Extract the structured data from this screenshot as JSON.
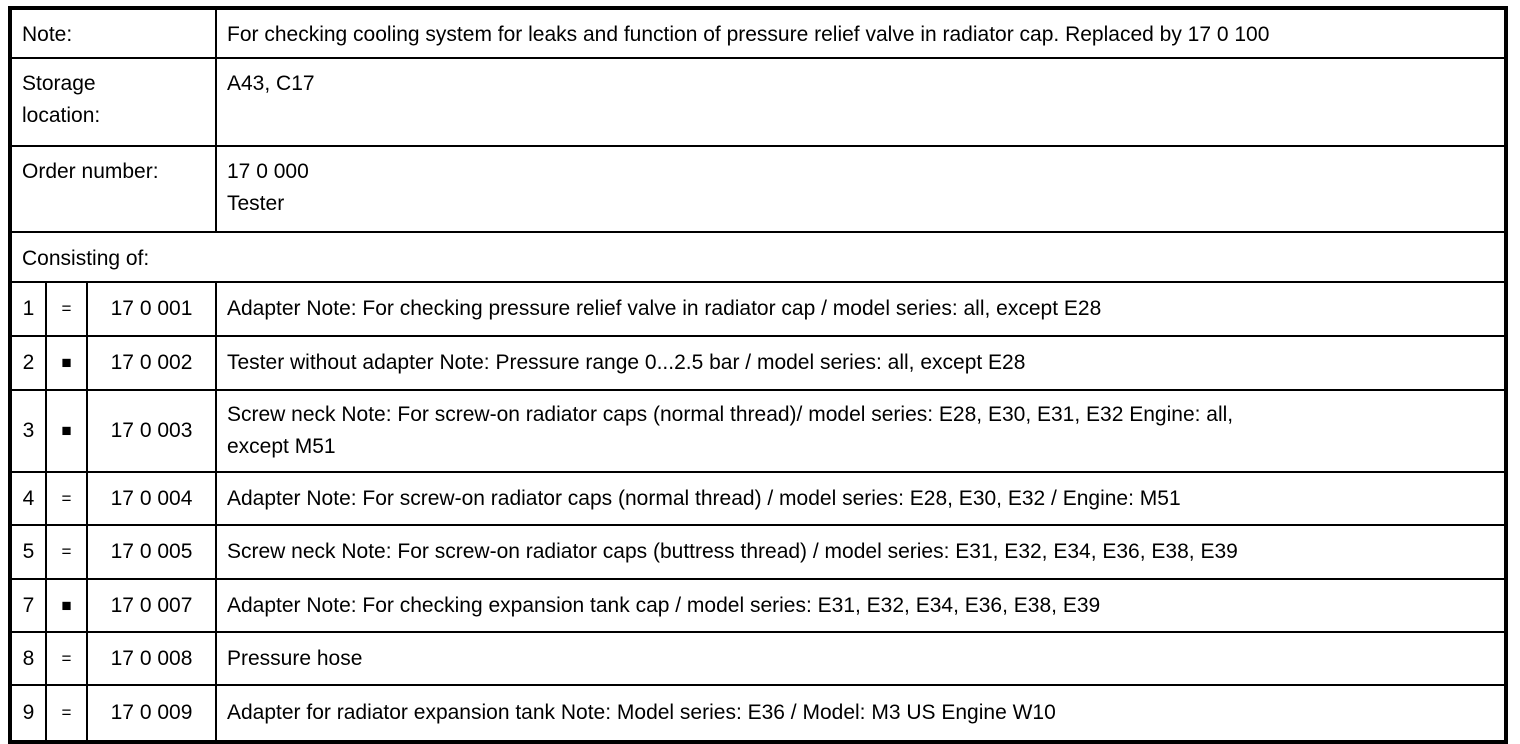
{
  "table": {
    "header_rows": [
      {
        "label": "Note:",
        "value": "For checking cooling system for leaks and function of pressure relief valve in radiator cap. Replaced by 17 0 100"
      },
      {
        "label": "Storage\nlocation:",
        "value": "A43, C17"
      },
      {
        "label": "Order number:",
        "value": "17 0 000\nTester"
      }
    ],
    "section_label": "Consisting of:",
    "items": [
      {
        "no": "1",
        "eq": "=",
        "order_number": "17 0 001",
        "description": "Adapter Note: For checking pressure relief valve in radiator cap / model series: all, except E28"
      },
      {
        "no": "2",
        "eq": "■",
        "order_number": "17 0 002",
        "description": "Tester without adapter Note: Pressure range 0...2.5 bar / model series: all, except E28"
      },
      {
        "no": "3",
        "eq": "■",
        "order_number": "17 0 003",
        "description": "Screw neck Note: For screw-on radiator caps (normal thread)/ model series: E28, E30, E31, E32 Engine: all,\nexcept M51"
      },
      {
        "no": "4",
        "eq": "=",
        "order_number": "17 0 004",
        "description": "Adapter Note: For screw-on radiator caps (normal thread) / model series: E28, E30, E32 / Engine: M51"
      },
      {
        "no": "5",
        "eq": "=",
        "order_number": "17 0 005",
        "description": "Screw neck Note: For screw-on radiator caps (buttress thread) / model series: E31, E32, E34, E36, E38, E39"
      },
      {
        "no": "7",
        "eq": "■",
        "order_number": "17 0 007",
        "description": "Adapter Note: For checking expansion tank cap / model series: E31, E32, E34, E36, E38, E39"
      },
      {
        "no": "8",
        "eq": "=",
        "order_number": "17 0 008",
        "description": "Pressure hose"
      },
      {
        "no": "9",
        "eq": "=",
        "order_number": "17 0 009",
        "description": "Adapter for radiator expansion tank Note: Model series: E36 / Model: M3 US Engine W10"
      }
    ],
    "colors": {
      "border": "#000000",
      "text": "#000000",
      "background": "#ffffff"
    }
  }
}
